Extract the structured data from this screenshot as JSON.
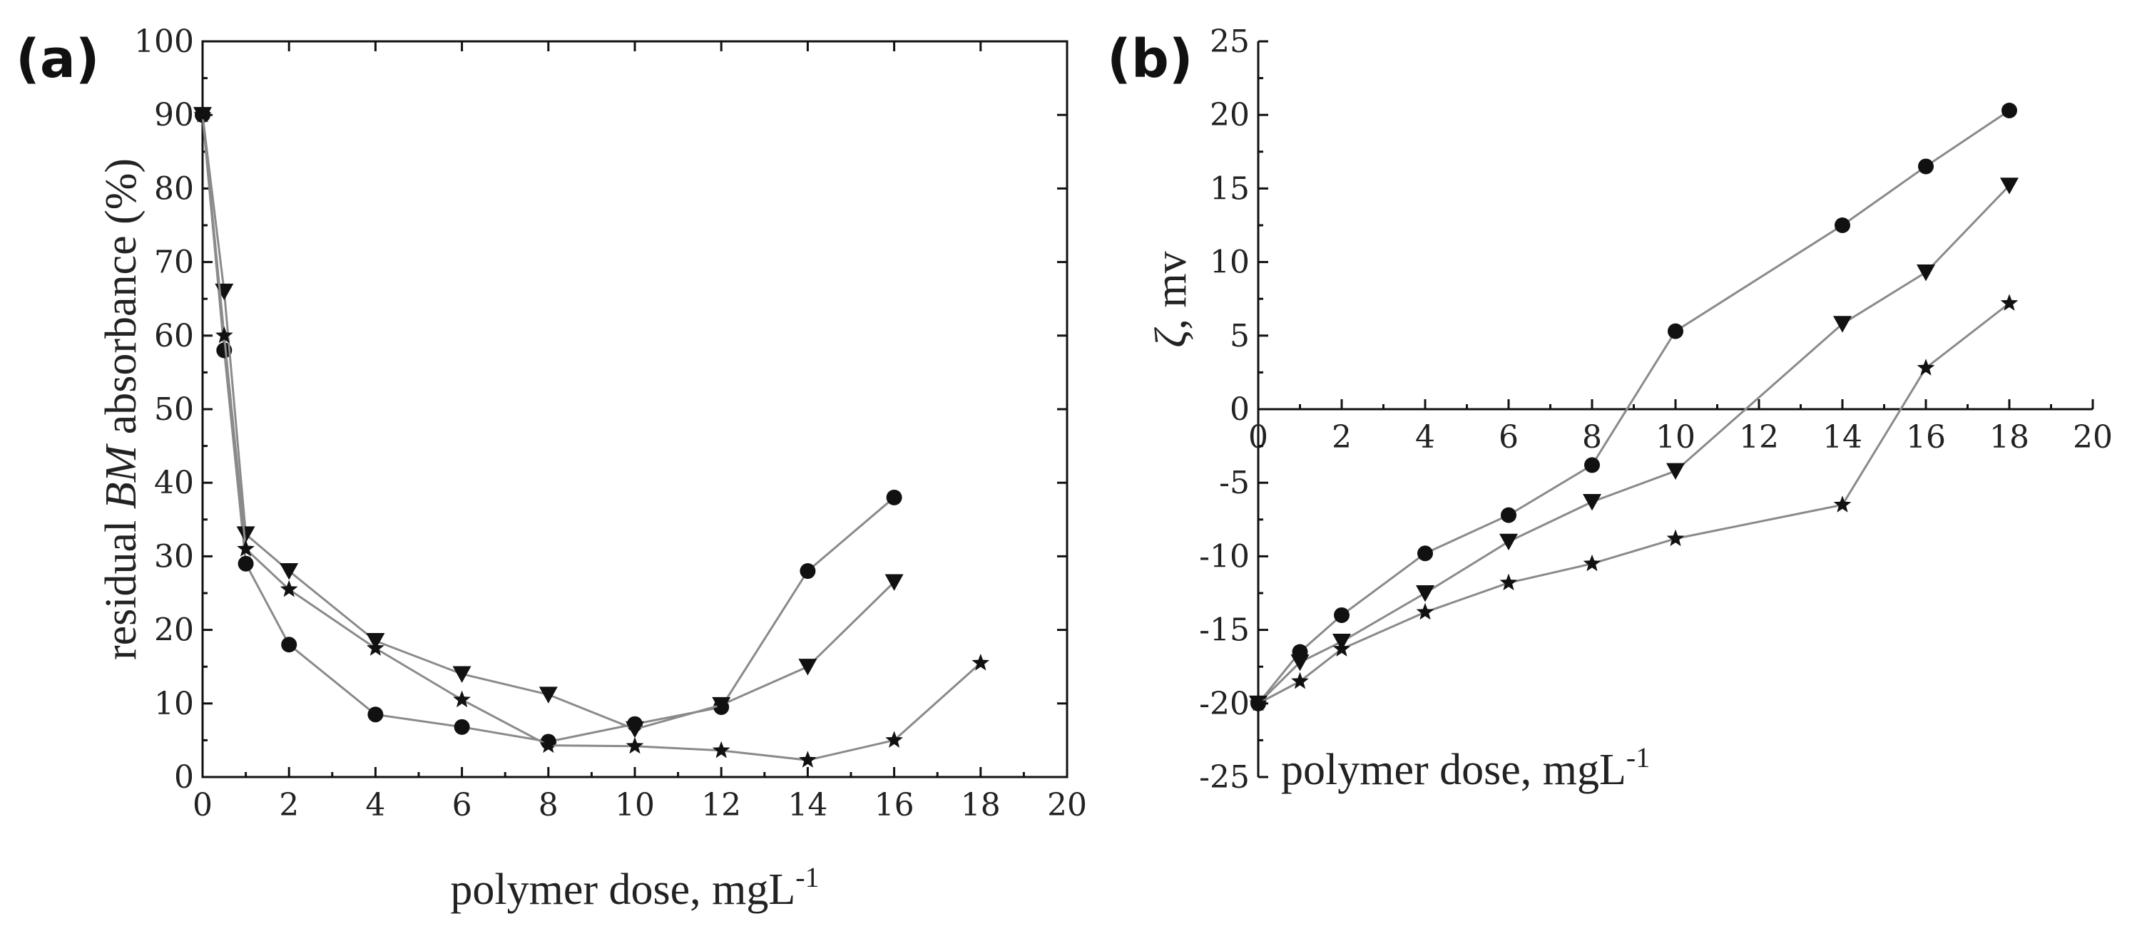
{
  "figure": "Two-panel line chart",
  "chart_data": [
    {
      "panel": "a",
      "panel_label": "(a)",
      "type": "line",
      "title": "",
      "xlabel_parts": [
        "polymer dose, mgL",
        "-1"
      ],
      "ylabel_parts": [
        "residual ",
        "BM",
        " absorbance (%)"
      ],
      "xlim": [
        0,
        20
      ],
      "ylim": [
        0,
        100
      ],
      "xticks": [
        0,
        2,
        4,
        6,
        8,
        10,
        12,
        14,
        16,
        18,
        20
      ],
      "yticks": [
        0,
        10,
        20,
        30,
        40,
        50,
        60,
        70,
        80,
        90,
        100
      ],
      "grid": false,
      "legend": "none",
      "series": [
        {
          "name": "circle series",
          "marker": "circle",
          "x": [
            0,
            0.5,
            1,
            2,
            4,
            6,
            8,
            10,
            12,
            14,
            16
          ],
          "y": [
            90,
            58,
            29,
            18,
            8.5,
            6.8,
            4.8,
            7.2,
            9.5,
            28,
            38
          ]
        },
        {
          "name": "triangle series",
          "marker": "triangle-down",
          "x": [
            0,
            0.5,
            1,
            2,
            4,
            6,
            8,
            10,
            12,
            14,
            16
          ],
          "y": [
            90,
            66,
            33,
            28,
            18.5,
            14,
            11.2,
            6.5,
            9.8,
            15,
            26.5
          ]
        },
        {
          "name": "star series",
          "marker": "star",
          "x": [
            0,
            0.5,
            1,
            2,
            4,
            6,
            8,
            10,
            12,
            14,
            16,
            18
          ],
          "y": [
            90,
            60,
            31,
            25.5,
            17.5,
            10.5,
            4.3,
            4.2,
            3.6,
            2.3,
            5,
            15.5
          ]
        }
      ]
    },
    {
      "panel": "b",
      "panel_label": "(b)",
      "type": "line",
      "title": "",
      "xlabel_parts": [
        "polymer dose, mgL",
        "-1"
      ],
      "ylabel_parts": [
        "ζ",
        ", mv"
      ],
      "xlim": [
        0,
        20
      ],
      "ylim": [
        -25,
        25
      ],
      "xticks": [
        0,
        2,
        4,
        6,
        8,
        10,
        12,
        14,
        16,
        18,
        20
      ],
      "yticks": [
        -25,
        -20,
        -15,
        -10,
        -5,
        0,
        5,
        10,
        15,
        20,
        25
      ],
      "grid": false,
      "legend": "none",
      "series": [
        {
          "name": "circle series",
          "marker": "circle",
          "x": [
            0,
            1,
            2,
            4,
            6,
            8,
            10,
            14,
            16,
            18
          ],
          "y": [
            -20,
            -16.5,
            -14,
            -9.8,
            -7.2,
            -3.8,
            5.3,
            12.5,
            16.5,
            20.3
          ]
        },
        {
          "name": "triangle series",
          "marker": "triangle-down",
          "x": [
            0,
            1,
            2,
            4,
            6,
            8,
            10,
            14,
            16,
            18
          ],
          "y": [
            -20,
            -17.2,
            -15.8,
            -12.5,
            -9,
            -6.3,
            -4.2,
            5.8,
            9.3,
            15.2
          ]
        },
        {
          "name": "star series",
          "marker": "star",
          "x": [
            0,
            1,
            2,
            4,
            6,
            8,
            10,
            14,
            16,
            18
          ],
          "y": [
            -20,
            -18.5,
            -16.3,
            -13.8,
            -11.8,
            -10.5,
            -8.8,
            -6.5,
            2.8,
            7.2
          ]
        }
      ]
    }
  ]
}
